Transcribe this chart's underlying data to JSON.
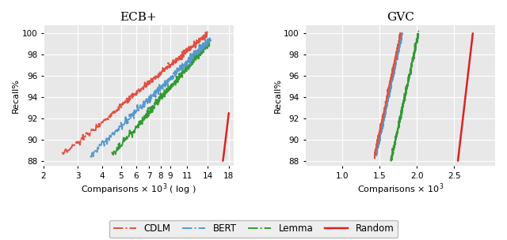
{
  "ecb_title": "ECB+",
  "gvc_title": "GVC",
  "ecb_xlabel": "Comparisons $\\times$ 10$^3$ ( log )",
  "gvc_xlabel": "Comparisons $\\times$ 10$^3$",
  "ylabel": "Recall%",
  "ecb_xlim_log": [
    2,
    19
  ],
  "ecb_ylim": [
    87.5,
    100.8
  ],
  "gvc_xlim": [
    0.5,
    3.05
  ],
  "gvc_ylim": [
    87.5,
    100.8
  ],
  "ecb_xticks": [
    2,
    3,
    4,
    5,
    6,
    7,
    8,
    9,
    11,
    14,
    18
  ],
  "gvc_xticks": [
    1,
    1.5,
    2.0,
    2.5
  ],
  "yticks": [
    88,
    90,
    92,
    94,
    96,
    98,
    100
  ],
  "colors": {
    "CDLM": "#e05040",
    "BERT": "#5599cc",
    "Lemma": "#339933",
    "Random": "#dd2222"
  },
  "bg_color": "#e8e8e8",
  "legend_bg": "#eeeeee"
}
